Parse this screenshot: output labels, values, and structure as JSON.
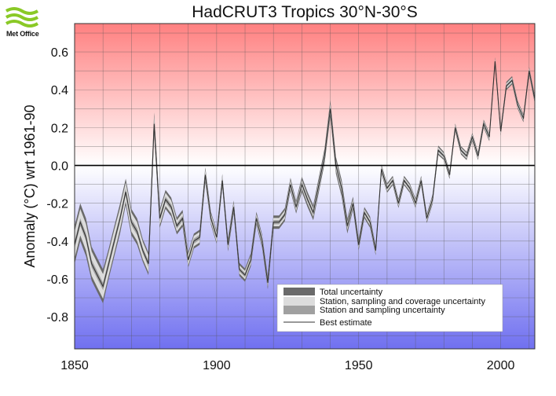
{
  "logo": {
    "text": "Met Office"
  },
  "chart_data": {
    "type": "line",
    "title": "HadCRUT3 Tropics 30°N-30°S",
    "xlabel": "",
    "ylabel": "Anomaly (°C) wrt 1961-90",
    "xlim": [
      1850,
      2012
    ],
    "ylim": [
      -0.97,
      0.75
    ],
    "x_ticks": [
      1850,
      1900,
      1950,
      2000
    ],
    "y_ticks": [
      -0.8,
      -0.6,
      -0.4,
      -0.2,
      0.0,
      0.2,
      0.4,
      0.6
    ],
    "y_tick_labels": [
      "-0.8",
      "-0.6",
      "-0.4",
      "-0.2",
      "0.0",
      "0.2",
      "0.4",
      "0.6"
    ],
    "x_tick_labels": [
      "1850",
      "1900",
      "1950",
      "2000"
    ],
    "grid": true,
    "legend_position": "bottom-right",
    "legend": [
      {
        "label": "Total uncertainty",
        "color": "#6a6a6a",
        "kind": "band"
      },
      {
        "label": "Station, sampling and coverage uncertainty",
        "color": "#dcdcdc",
        "kind": "band"
      },
      {
        "label": "Station and sampling uncertainty",
        "color": "#a0a0a0",
        "kind": "band"
      },
      {
        "label": "Best estimate",
        "color": "#333333",
        "kind": "line"
      }
    ],
    "background": {
      "warm": "#ff8080",
      "neutral": "#ffffff",
      "cool": "#7070f0"
    },
    "best_estimate": {
      "x": [
        1850,
        1852,
        1854,
        1856,
        1858,
        1860,
        1862,
        1864,
        1866,
        1868,
        1870,
        1872,
        1874,
        1876,
        1878,
        1880,
        1882,
        1884,
        1886,
        1888,
        1890,
        1892,
        1894,
        1896,
        1898,
        1900,
        1902,
        1904,
        1906,
        1908,
        1910,
        1912,
        1914,
        1916,
        1918,
        1920,
        1922,
        1924,
        1926,
        1928,
        1930,
        1932,
        1934,
        1936,
        1938,
        1940,
        1942,
        1944,
        1946,
        1948,
        1950,
        1952,
        1954,
        1956,
        1958,
        1960,
        1962,
        1964,
        1966,
        1968,
        1970,
        1972,
        1974,
        1976,
        1978,
        1980,
        1982,
        1984,
        1986,
        1988,
        1990,
        1992,
        1994,
        1996,
        1998,
        2000,
        2002,
        2004,
        2006,
        2008,
        2010,
        2012
      ],
      "values": [
        -0.42,
        -0.3,
        -0.38,
        -0.52,
        -0.58,
        -0.64,
        -0.52,
        -0.4,
        -0.28,
        -0.14,
        -0.3,
        -0.35,
        -0.45,
        -0.52,
        0.22,
        -0.28,
        -0.18,
        -0.22,
        -0.32,
        -0.28,
        -0.5,
        -0.4,
        -0.38,
        -0.05,
        -0.28,
        -0.38,
        -0.08,
        -0.42,
        -0.22,
        -0.55,
        -0.58,
        -0.5,
        -0.28,
        -0.4,
        -0.62,
        -0.3,
        -0.3,
        -0.26,
        -0.1,
        -0.22,
        -0.1,
        -0.18,
        -0.25,
        -0.1,
        0.05,
        0.3,
        0.0,
        -0.12,
        -0.32,
        -0.2,
        -0.42,
        -0.25,
        -0.3,
        -0.45,
        -0.02,
        -0.12,
        -0.08,
        -0.2,
        -0.08,
        -0.12,
        -0.2,
        -0.08,
        -0.28,
        -0.18,
        0.08,
        0.05,
        -0.05,
        0.2,
        0.08,
        0.05,
        0.15,
        0.05,
        0.22,
        0.15,
        0.55,
        0.18,
        0.42,
        0.45,
        0.32,
        0.25,
        0.5,
        0.35
      ]
    },
    "uncertainty_halfwidth": {
      "total": [
        0.1,
        0.1,
        0.1,
        0.09,
        0.09,
        0.09,
        0.08,
        0.08,
        0.08,
        0.07,
        0.07,
        0.07,
        0.06,
        0.06,
        0.06,
        0.05,
        0.05,
        0.05,
        0.045,
        0.045,
        0.04,
        0.04,
        0.04,
        0.04,
        0.035,
        0.035,
        0.035,
        0.035,
        0.035,
        0.035,
        0.035,
        0.035,
        0.035,
        0.035,
        0.035,
        0.035,
        0.035,
        0.035,
        0.035,
        0.035,
        0.04,
        0.04,
        0.04,
        0.04,
        0.04,
        0.045,
        0.045,
        0.045,
        0.04,
        0.035,
        0.03,
        0.03,
        0.03,
        0.025,
        0.025,
        0.025,
        0.025,
        0.025,
        0.025,
        0.025,
        0.025,
        0.025,
        0.025,
        0.025,
        0.025,
        0.022,
        0.022,
        0.022,
        0.022,
        0.022,
        0.022,
        0.022,
        0.022,
        0.022,
        0.022,
        0.022,
        0.022,
        0.022,
        0.022,
        0.022,
        0.022,
        0.022
      ],
      "coverage": [
        0.07,
        0.07,
        0.07,
        0.065,
        0.065,
        0.065,
        0.06,
        0.06,
        0.055,
        0.05,
        0.05,
        0.05,
        0.045,
        0.045,
        0.04,
        0.035,
        0.035,
        0.035,
        0.03,
        0.03,
        0.028,
        0.028,
        0.028,
        0.028,
        0.025,
        0.025,
        0.025,
        0.022,
        0.022,
        0.022,
        0.022,
        0.022,
        0.022,
        0.022,
        0.022,
        0.022,
        0.022,
        0.022,
        0.022,
        0.022,
        0.022,
        0.022,
        0.022,
        0.022,
        0.022,
        0.025,
        0.025,
        0.025,
        0.022,
        0.02,
        0.018,
        0.018,
        0.018,
        0.016,
        0.016,
        0.016,
        0.016,
        0.016,
        0.016,
        0.016,
        0.016,
        0.016,
        0.016,
        0.016,
        0.016,
        0.014,
        0.014,
        0.014,
        0.014,
        0.014,
        0.014,
        0.014,
        0.014,
        0.014,
        0.014,
        0.014,
        0.014,
        0.014,
        0.014,
        0.014,
        0.014,
        0.014
      ],
      "station": [
        0.02,
        0.02,
        0.02,
        0.02,
        0.02,
        0.02,
        0.02,
        0.02,
        0.018,
        0.018,
        0.018,
        0.018,
        0.016,
        0.016,
        0.016,
        0.015,
        0.015,
        0.015,
        0.014,
        0.014,
        0.013,
        0.013,
        0.013,
        0.013,
        0.012,
        0.012,
        0.012,
        0.011,
        0.011,
        0.011,
        0.011,
        0.011,
        0.011,
        0.011,
        0.011,
        0.011,
        0.011,
        0.011,
        0.011,
        0.011,
        0.011,
        0.011,
        0.011,
        0.011,
        0.011,
        0.012,
        0.012,
        0.012,
        0.011,
        0.01,
        0.009,
        0.009,
        0.009,
        0.008,
        0.008,
        0.008,
        0.008,
        0.008,
        0.008,
        0.008,
        0.008,
        0.008,
        0.008,
        0.008,
        0.008,
        0.007,
        0.007,
        0.007,
        0.007,
        0.007,
        0.007,
        0.007,
        0.007,
        0.007,
        0.007,
        0.007,
        0.007,
        0.007,
        0.007,
        0.007,
        0.007,
        0.007
      ]
    }
  }
}
